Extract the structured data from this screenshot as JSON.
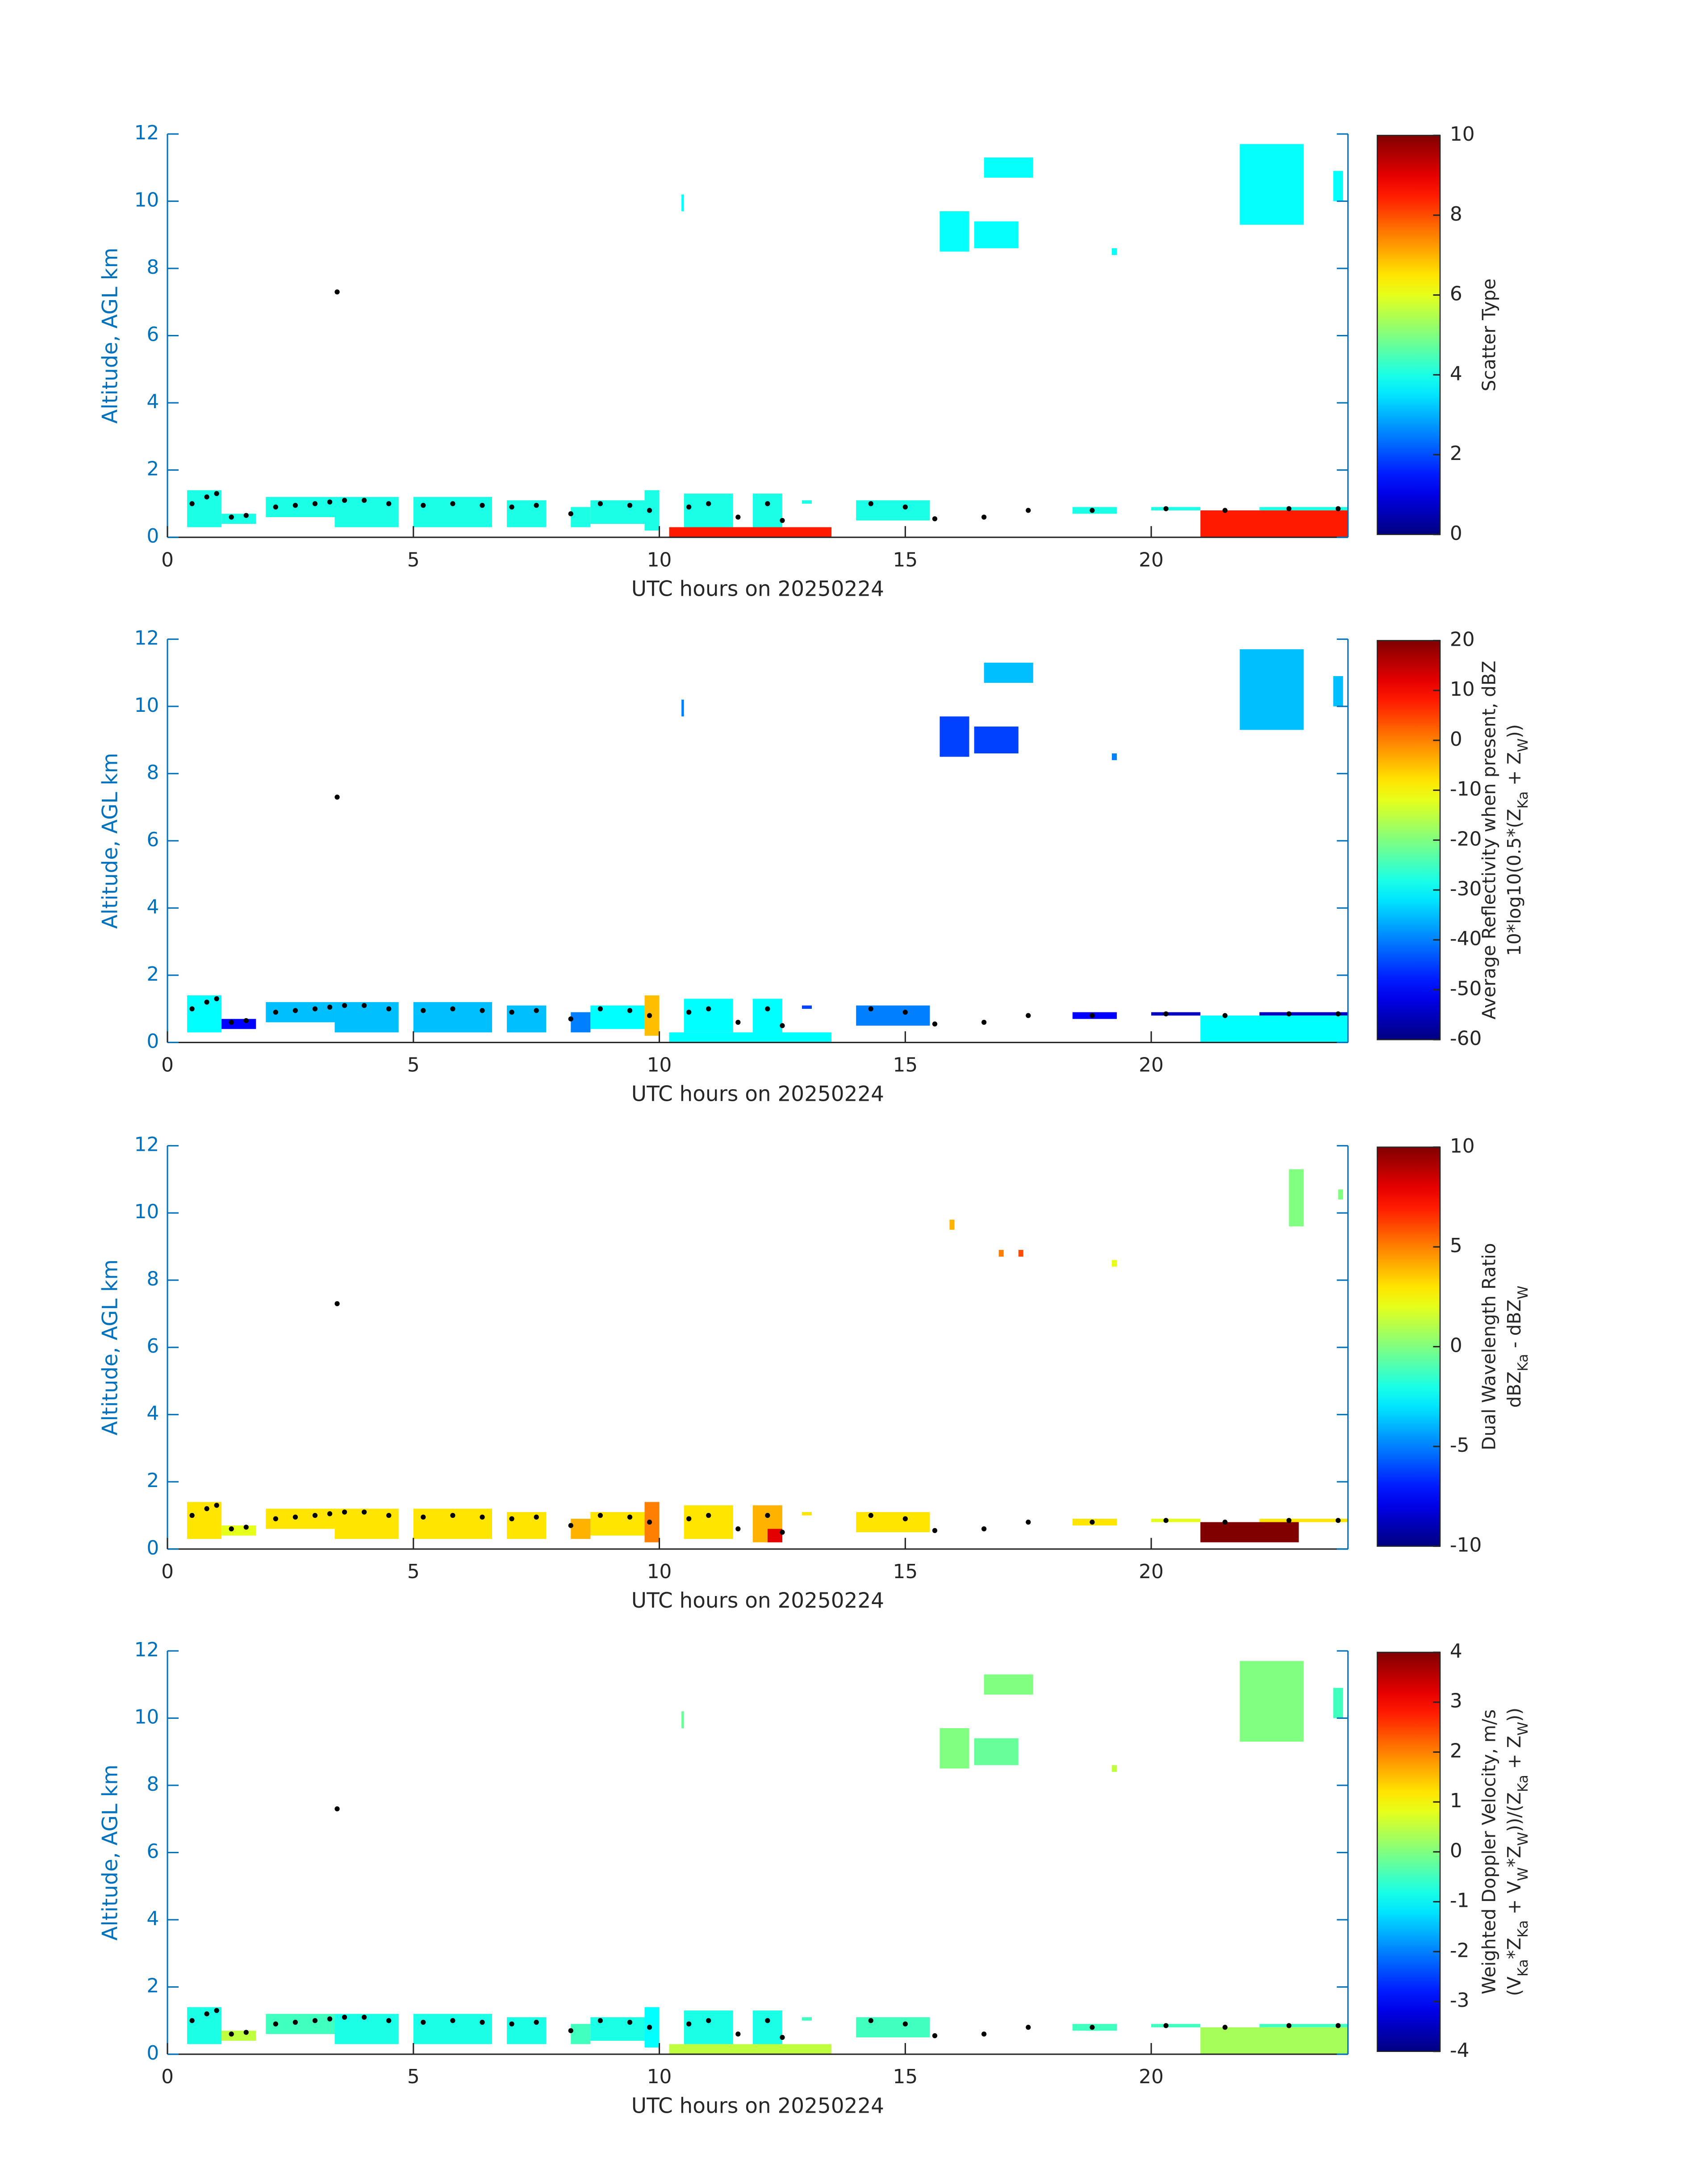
{
  "chart_data": [
    {
      "type": "time_height",
      "xlabel": "UTC hours on 20250224",
      "ylabel": "Altitude, AGL km",
      "xlim": [
        0,
        24
      ],
      "xticks": [
        0,
        5,
        10,
        15,
        20
      ],
      "ylim": [
        0,
        12
      ],
      "yticks": [
        0,
        2,
        4,
        6,
        8,
        10,
        12
      ],
      "colormap": "jet",
      "clim": [
        0,
        10
      ],
      "cticks": [
        0,
        2,
        4,
        6,
        8,
        10
      ],
      "colorbar_label": [
        [
          "Scatter Type"
        ]
      ],
      "echoes": {
        "t0": [
          0.4,
          1.1,
          2.0,
          3.4,
          5.0,
          6.9,
          8.2,
          8.6,
          9.7,
          10.5,
          11.9,
          12.9,
          14.0,
          15.7,
          16.6,
          16.4,
          19.2,
          18.4,
          20.0,
          21.8,
          23.7,
          22.2,
          10.45,
          21.0,
          10.2
        ],
        "t1": [
          1.1,
          1.8,
          3.4,
          4.7,
          6.6,
          7.7,
          8.6,
          9.7,
          10.0,
          11.5,
          12.5,
          13.1,
          15.5,
          16.3,
          17.6,
          17.3,
          19.3,
          19.3,
          21.0,
          23.1,
          23.9,
          24.0,
          10.5,
          24.0,
          13.5
        ],
        "z0": [
          0.3,
          0.4,
          0.6,
          0.3,
          0.3,
          0.3,
          0.3,
          0.4,
          0.2,
          0.3,
          0.2,
          1.0,
          0.5,
          8.5,
          10.7,
          8.6,
          8.4,
          0.7,
          0.8,
          9.3,
          10.0,
          0.8,
          9.7,
          0.0,
          0.0
        ],
        "z1": [
          1.4,
          0.7,
          1.2,
          1.2,
          1.2,
          1.1,
          0.9,
          1.1,
          1.4,
          1.3,
          1.3,
          1.1,
          1.1,
          9.7,
          11.3,
          9.4,
          8.6,
          0.9,
          0.9,
          11.7,
          10.9,
          0.9,
          10.2,
          0.8,
          0.3
        ],
        "values": [
          4,
          4,
          4,
          4,
          4,
          4,
          4,
          4,
          4,
          4,
          4,
          4,
          4,
          3.8,
          3.8,
          3.8,
          3.8,
          4,
          4,
          3.8,
          3.8,
          4,
          3.8,
          8.5,
          8.5
        ]
      },
      "series": [
        {
          "color": "#000000",
          "x": [
            0.5,
            0.8,
            1.0,
            1.3,
            1.6,
            2.2,
            2.6,
            3.0,
            3.3,
            3.45,
            3.6,
            4.0,
            4.5,
            5.2,
            5.8,
            6.4,
            7.0,
            7.5,
            8.2,
            8.8,
            9.4,
            9.8,
            10.6,
            11.0,
            11.6,
            12.2,
            12.5,
            14.3,
            15.0,
            15.6,
            16.6,
            17.5,
            18.8,
            20.3,
            21.5,
            22.8,
            23.8
          ],
          "values": [
            1.0,
            1.2,
            1.3,
            0.6,
            0.65,
            0.9,
            0.95,
            1.0,
            1.05,
            7.3,
            1.1,
            1.1,
            1.0,
            0.95,
            1.0,
            0.95,
            0.9,
            0.95,
            0.7,
            1.0,
            0.95,
            0.8,
            0.9,
            1.0,
            0.6,
            1.0,
            0.5,
            1.0,
            0.9,
            0.55,
            0.6,
            0.8,
            0.8,
            0.85,
            0.8,
            0.85,
            0.85
          ]
        }
      ]
    },
    {
      "type": "time_height",
      "xlabel": "UTC hours on 20250224",
      "ylabel": "Altitude, AGL km",
      "xlim": [
        0,
        24
      ],
      "xticks": [
        0,
        5,
        10,
        15,
        20
      ],
      "ylim": [
        0,
        12
      ],
      "yticks": [
        0,
        2,
        4,
        6,
        8,
        10,
        12
      ],
      "colormap": "jet",
      "clim": [
        -60,
        20
      ],
      "cticks": [
        -60,
        -50,
        -40,
        -30,
        -20,
        -10,
        0,
        10,
        20
      ],
      "colorbar_label": [
        [
          "Average Reflectivity when present, dBZ"
        ],
        [
          "10*log10(0.5*(Z",
          {
            "sub": "Ka"
          },
          " + Z",
          {
            "sub": "W"
          },
          "))"
        ]
      ],
      "echoes": {
        "t0": [
          0.4,
          1.1,
          2.0,
          3.4,
          5.0,
          6.9,
          8.2,
          8.6,
          9.7,
          10.5,
          11.9,
          12.9,
          14.0,
          15.7,
          16.6,
          16.4,
          19.2,
          18.4,
          20.0,
          21.8,
          23.7,
          22.2,
          10.45,
          21.0,
          10.2
        ],
        "t1": [
          1.1,
          1.8,
          3.4,
          4.7,
          6.6,
          7.7,
          8.6,
          9.7,
          10.0,
          11.5,
          12.5,
          13.1,
          15.5,
          16.3,
          17.6,
          17.3,
          19.3,
          19.3,
          21.0,
          23.1,
          23.9,
          24.0,
          10.5,
          24.0,
          13.5
        ],
        "z0": [
          0.3,
          0.4,
          0.6,
          0.3,
          0.3,
          0.3,
          0.3,
          0.4,
          0.2,
          0.3,
          0.2,
          1.0,
          0.5,
          8.5,
          10.7,
          8.6,
          8.4,
          0.7,
          0.8,
          9.3,
          10.0,
          0.8,
          9.7,
          0.0,
          0.0
        ],
        "z1": [
          1.4,
          0.7,
          1.2,
          1.2,
          1.2,
          1.1,
          0.9,
          1.1,
          1.4,
          1.3,
          1.3,
          1.1,
          1.1,
          9.7,
          11.3,
          9.4,
          8.6,
          0.9,
          0.9,
          11.7,
          10.9,
          0.9,
          10.2,
          0.8,
          0.3
        ],
        "values": [
          -30,
          -50,
          -35,
          -35,
          -35,
          -35,
          -40,
          -30,
          -5,
          -30,
          -30,
          -45,
          -40,
          -45,
          -35,
          -45,
          -40,
          -50,
          -55,
          -35,
          -35,
          -55,
          -40,
          -30,
          -30
        ]
      },
      "series": [
        {
          "color": "#000000",
          "x": [
            0.5,
            0.8,
            1.0,
            1.3,
            1.6,
            2.2,
            2.6,
            3.0,
            3.3,
            3.45,
            3.6,
            4.0,
            4.5,
            5.2,
            5.8,
            6.4,
            7.0,
            7.5,
            8.2,
            8.8,
            9.4,
            9.8,
            10.6,
            11.0,
            11.6,
            12.2,
            12.5,
            14.3,
            15.0,
            15.6,
            16.6,
            17.5,
            18.8,
            20.3,
            21.5,
            22.8,
            23.8
          ],
          "values": [
            1.0,
            1.2,
            1.3,
            0.6,
            0.65,
            0.9,
            0.95,
            1.0,
            1.05,
            7.3,
            1.1,
            1.1,
            1.0,
            0.95,
            1.0,
            0.95,
            0.9,
            0.95,
            0.7,
            1.0,
            0.95,
            0.8,
            0.9,
            1.0,
            0.6,
            1.0,
            0.5,
            1.0,
            0.9,
            0.55,
            0.6,
            0.8,
            0.8,
            0.85,
            0.8,
            0.85,
            0.85
          ]
        }
      ]
    },
    {
      "type": "time_height",
      "xlabel": "UTC hours on 20250224",
      "ylabel": "Altitude, AGL km",
      "xlim": [
        0,
        24
      ],
      "xticks": [
        0,
        5,
        10,
        15,
        20
      ],
      "ylim": [
        0,
        12
      ],
      "yticks": [
        0,
        2,
        4,
        6,
        8,
        10,
        12
      ],
      "colormap": "jet",
      "clim": [
        -10,
        10
      ],
      "cticks": [
        -10,
        -5,
        0,
        5,
        10
      ],
      "colorbar_label": [
        [
          "Dual Wavelength Ratio"
        ],
        [
          "dBZ",
          {
            "sub": "Ka"
          },
          " - dBZ",
          {
            "sub": "W"
          }
        ]
      ],
      "echoes": {
        "t0": [
          0.4,
          1.1,
          2.0,
          3.4,
          5.0,
          6.9,
          8.2,
          8.6,
          9.7,
          10.5,
          11.9,
          12.9,
          14.0,
          15.9,
          17.3,
          16.9,
          19.2,
          18.4,
          20.0,
          22.8,
          23.8,
          22.2,
          21.0,
          21.0,
          12.2
        ],
        "t1": [
          1.1,
          1.8,
          3.4,
          4.7,
          6.6,
          7.7,
          8.6,
          9.7,
          10.0,
          11.5,
          12.5,
          13.1,
          15.5,
          16.0,
          17.4,
          17.0,
          19.3,
          19.3,
          21.0,
          23.1,
          23.9,
          24.0,
          21.0,
          23.0,
          12.5
        ],
        "z0": [
          0.3,
          0.4,
          0.6,
          0.3,
          0.3,
          0.3,
          0.3,
          0.4,
          0.2,
          0.3,
          0.2,
          1.0,
          0.5,
          9.5,
          8.7,
          8.7,
          8.4,
          0.7,
          0.8,
          9.6,
          10.4,
          0.8,
          0.3,
          0.2,
          0.2
        ],
        "z1": [
          1.4,
          0.7,
          1.2,
          1.2,
          1.2,
          1.1,
          0.9,
          1.1,
          1.4,
          1.3,
          1.3,
          1.1,
          1.1,
          9.8,
          8.9,
          8.9,
          8.6,
          0.9,
          0.9,
          11.3,
          10.7,
          0.9,
          0.8,
          0.8,
          0.6
        ],
        "values": [
          3,
          2,
          3,
          3,
          3,
          3,
          4,
          3,
          5,
          3,
          4,
          3,
          3,
          4,
          6,
          5,
          2,
          3,
          2,
          0,
          0,
          3,
          3,
          10,
          8
        ]
      },
      "series": [
        {
          "color": "#000000",
          "x": [
            0.5,
            0.8,
            1.0,
            1.3,
            1.6,
            2.2,
            2.6,
            3.0,
            3.3,
            3.45,
            3.6,
            4.0,
            4.5,
            5.2,
            5.8,
            6.4,
            7.0,
            7.5,
            8.2,
            8.8,
            9.4,
            9.8,
            10.6,
            11.0,
            11.6,
            12.2,
            12.5,
            14.3,
            15.0,
            15.6,
            16.6,
            17.5,
            18.8,
            20.3,
            21.5,
            22.8,
            23.8
          ],
          "values": [
            1.0,
            1.2,
            1.3,
            0.6,
            0.65,
            0.9,
            0.95,
            1.0,
            1.05,
            7.3,
            1.1,
            1.1,
            1.0,
            0.95,
            1.0,
            0.95,
            0.9,
            0.95,
            0.7,
            1.0,
            0.95,
            0.8,
            0.9,
            1.0,
            0.6,
            1.0,
            0.5,
            1.0,
            0.9,
            0.55,
            0.6,
            0.8,
            0.8,
            0.85,
            0.8,
            0.85,
            0.85
          ]
        }
      ]
    },
    {
      "type": "time_height",
      "xlabel": "UTC hours on 20250224",
      "ylabel": "Altitude, AGL km",
      "xlim": [
        0,
        24
      ],
      "xticks": [
        0,
        5,
        10,
        15,
        20
      ],
      "ylim": [
        0,
        12
      ],
      "yticks": [
        0,
        2,
        4,
        6,
        8,
        10,
        12
      ],
      "colormap": "jet",
      "clim": [
        -4,
        4
      ],
      "cticks": [
        -4,
        -3,
        -2,
        -1,
        0,
        1,
        2,
        3,
        4
      ],
      "colorbar_label": [
        [
          "Weighted Doppler Velocity, m/s"
        ],
        [
          "(V",
          {
            "sub": "Ka"
          },
          "*Z",
          {
            "sub": "Ka"
          },
          " + V",
          {
            "sub": "W"
          },
          "*Z",
          {
            "sub": "W"
          },
          "))/(Z",
          {
            "sub": "Ka"
          },
          " + Z",
          {
            "sub": "W"
          },
          "))"
        ]
      ],
      "echoes": {
        "t0": [
          0.4,
          1.1,
          2.0,
          3.4,
          5.0,
          6.9,
          8.2,
          8.6,
          9.7,
          10.5,
          11.9,
          12.9,
          14.0,
          15.7,
          16.6,
          16.4,
          19.2,
          18.4,
          20.0,
          21.8,
          23.7,
          22.2,
          10.45,
          21.0,
          10.2
        ],
        "t1": [
          1.1,
          1.8,
          3.4,
          4.7,
          6.6,
          7.7,
          8.6,
          9.7,
          10.0,
          11.5,
          12.5,
          13.1,
          15.5,
          16.3,
          17.6,
          17.3,
          19.3,
          19.3,
          21.0,
          23.1,
          23.9,
          24.0,
          10.5,
          24.0,
          13.5
        ],
        "z0": [
          0.3,
          0.4,
          0.6,
          0.3,
          0.3,
          0.3,
          0.3,
          0.4,
          0.2,
          0.3,
          0.2,
          1.0,
          0.5,
          8.5,
          10.7,
          8.6,
          8.4,
          0.7,
          0.8,
          9.3,
          10.0,
          0.8,
          9.7,
          0.0,
          0.0
        ],
        "z1": [
          1.4,
          0.7,
          1.2,
          1.2,
          1.2,
          1.1,
          0.9,
          1.1,
          1.4,
          1.3,
          1.3,
          1.1,
          1.1,
          9.7,
          11.3,
          9.4,
          8.6,
          0.9,
          0.9,
          11.7,
          10.9,
          0.9,
          10.2,
          0.8,
          0.3
        ],
        "values": [
          -0.8,
          0.5,
          -0.5,
          -0.8,
          -0.8,
          -0.8,
          -0.5,
          -0.8,
          -1,
          -0.8,
          -0.8,
          -0.5,
          -0.5,
          0,
          0,
          -0.2,
          0.5,
          -0.5,
          -0.5,
          0,
          -0.5,
          -0.5,
          -0.2,
          0.3,
          0.5
        ]
      },
      "series": [
        {
          "color": "#000000",
          "x": [
            0.5,
            0.8,
            1.0,
            1.3,
            1.6,
            2.2,
            2.6,
            3.0,
            3.3,
            3.45,
            3.6,
            4.0,
            4.5,
            5.2,
            5.8,
            6.4,
            7.0,
            7.5,
            8.2,
            8.8,
            9.4,
            9.8,
            10.6,
            11.0,
            11.6,
            12.2,
            12.5,
            14.3,
            15.0,
            15.6,
            16.6,
            17.5,
            18.8,
            20.3,
            21.5,
            22.8,
            23.8
          ],
          "values": [
            1.0,
            1.2,
            1.3,
            0.6,
            0.65,
            0.9,
            0.95,
            1.0,
            1.05,
            7.3,
            1.1,
            1.1,
            1.0,
            0.95,
            1.0,
            0.95,
            0.9,
            0.95,
            0.7,
            1.0,
            0.95,
            0.8,
            0.9,
            1.0,
            0.6,
            1.0,
            0.5,
            1.0,
            0.9,
            0.55,
            0.6,
            0.8,
            0.8,
            0.85,
            0.8,
            0.85,
            0.85
          ]
        }
      ]
    }
  ]
}
